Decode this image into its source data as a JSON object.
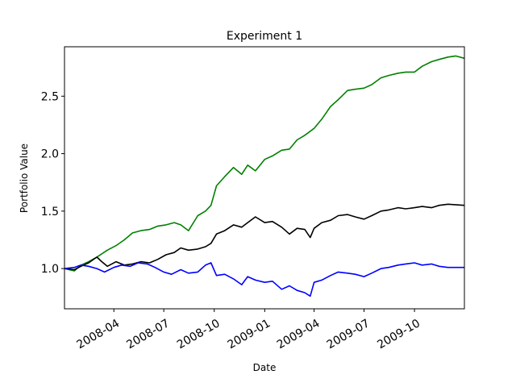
{
  "chart_data": {
    "type": "line",
    "title": "Experiment 1",
    "xlabel": "Date",
    "ylabel": "Portfolio Value",
    "x_range": [
      "2008-01-02",
      "2009-12-31"
    ],
    "ylim": [
      0.65,
      2.93
    ],
    "grid": false,
    "legend": "none",
    "x_ticks": [
      "2008-04",
      "2008-07",
      "2008-10",
      "2009-01",
      "2009-04",
      "2009-07",
      "2009-10"
    ],
    "x_tick_dates": [
      "2008-04-01",
      "2008-07-01",
      "2008-10-01",
      "2009-01-01",
      "2009-04-01",
      "2009-07-01",
      "2009-10-01"
    ],
    "y_ticks": [
      1.0,
      1.5,
      2.0,
      2.5
    ],
    "y_tick_labels": [
      "1.0",
      "1.5",
      "2.0",
      "2.5"
    ],
    "series": [
      {
        "color": "#008000",
        "points": [
          [
            "2008-01-02",
            1.0
          ],
          [
            "2008-01-20",
            0.98
          ],
          [
            "2008-02-01",
            1.03
          ],
          [
            "2008-02-15",
            1.06
          ],
          [
            "2008-03-01",
            1.1
          ],
          [
            "2008-03-20",
            1.16
          ],
          [
            "2008-04-05",
            1.2
          ],
          [
            "2008-04-20",
            1.25
          ],
          [
            "2008-05-05",
            1.31
          ],
          [
            "2008-05-20",
            1.33
          ],
          [
            "2008-06-05",
            1.34
          ],
          [
            "2008-06-20",
            1.37
          ],
          [
            "2008-07-05",
            1.38
          ],
          [
            "2008-07-20",
            1.4
          ],
          [
            "2008-08-01",
            1.38
          ],
          [
            "2008-08-15",
            1.33
          ],
          [
            "2008-09-01",
            1.46
          ],
          [
            "2008-09-15",
            1.5
          ],
          [
            "2008-09-25",
            1.55
          ],
          [
            "2008-10-05",
            1.72
          ],
          [
            "2008-10-20",
            1.8
          ],
          [
            "2008-11-05",
            1.88
          ],
          [
            "2008-11-20",
            1.82
          ],
          [
            "2008-12-01",
            1.9
          ],
          [
            "2008-12-15",
            1.85
          ],
          [
            "2009-01-01",
            1.95
          ],
          [
            "2009-01-15",
            1.98
          ],
          [
            "2009-02-01",
            2.03
          ],
          [
            "2009-02-15",
            2.04
          ],
          [
            "2009-03-01",
            2.12
          ],
          [
            "2009-03-15",
            2.16
          ],
          [
            "2009-04-01",
            2.22
          ],
          [
            "2009-04-15",
            2.3
          ],
          [
            "2009-05-01",
            2.41
          ],
          [
            "2009-05-15",
            2.47
          ],
          [
            "2009-06-01",
            2.55
          ],
          [
            "2009-06-15",
            2.56
          ],
          [
            "2009-07-01",
            2.57
          ],
          [
            "2009-07-15",
            2.6
          ],
          [
            "2009-08-01",
            2.66
          ],
          [
            "2009-08-15",
            2.68
          ],
          [
            "2009-09-01",
            2.7
          ],
          [
            "2009-09-15",
            2.71
          ],
          [
            "2009-10-01",
            2.71
          ],
          [
            "2009-10-15",
            2.76
          ],
          [
            "2009-11-01",
            2.8
          ],
          [
            "2009-11-15",
            2.82
          ],
          [
            "2009-12-01",
            2.84
          ],
          [
            "2009-12-15",
            2.85
          ],
          [
            "2009-12-31",
            2.83
          ]
        ]
      },
      {
        "color": "#000000",
        "points": [
          [
            "2008-01-02",
            1.0
          ],
          [
            "2008-01-20",
            0.99
          ],
          [
            "2008-02-01",
            1.02
          ],
          [
            "2008-02-15",
            1.05
          ],
          [
            "2008-03-01",
            1.1
          ],
          [
            "2008-03-10",
            1.06
          ],
          [
            "2008-03-20",
            1.02
          ],
          [
            "2008-04-05",
            1.06
          ],
          [
            "2008-04-20",
            1.03
          ],
          [
            "2008-05-05",
            1.04
          ],
          [
            "2008-05-20",
            1.06
          ],
          [
            "2008-06-05",
            1.05
          ],
          [
            "2008-06-20",
            1.08
          ],
          [
            "2008-07-05",
            1.12
          ],
          [
            "2008-07-20",
            1.14
          ],
          [
            "2008-08-01",
            1.18
          ],
          [
            "2008-08-15",
            1.16
          ],
          [
            "2008-09-01",
            1.17
          ],
          [
            "2008-09-15",
            1.19
          ],
          [
            "2008-09-25",
            1.22
          ],
          [
            "2008-10-05",
            1.3
          ],
          [
            "2008-10-20",
            1.33
          ],
          [
            "2008-11-05",
            1.38
          ],
          [
            "2008-11-20",
            1.36
          ],
          [
            "2008-12-01",
            1.4
          ],
          [
            "2008-12-15",
            1.45
          ],
          [
            "2009-01-01",
            1.4
          ],
          [
            "2009-01-15",
            1.41
          ],
          [
            "2009-02-01",
            1.36
          ],
          [
            "2009-02-15",
            1.3
          ],
          [
            "2009-03-01",
            1.35
          ],
          [
            "2009-03-15",
            1.34
          ],
          [
            "2009-03-25",
            1.27
          ],
          [
            "2009-04-01",
            1.35
          ],
          [
            "2009-04-15",
            1.4
          ],
          [
            "2009-05-01",
            1.42
          ],
          [
            "2009-05-15",
            1.46
          ],
          [
            "2009-06-01",
            1.47
          ],
          [
            "2009-06-15",
            1.45
          ],
          [
            "2009-07-01",
            1.43
          ],
          [
            "2009-07-15",
            1.46
          ],
          [
            "2009-08-01",
            1.5
          ],
          [
            "2009-08-15",
            1.51
          ],
          [
            "2009-09-01",
            1.53
          ],
          [
            "2009-09-15",
            1.52
          ],
          [
            "2009-10-01",
            1.53
          ],
          [
            "2009-10-15",
            1.54
          ],
          [
            "2009-11-01",
            1.53
          ],
          [
            "2009-11-15",
            1.55
          ],
          [
            "2009-12-01",
            1.56
          ],
          [
            "2009-12-31",
            1.55
          ]
        ]
      },
      {
        "color": "#0000ff",
        "points": [
          [
            "2008-01-02",
            1.0
          ],
          [
            "2008-01-20",
            1.01
          ],
          [
            "2008-02-01",
            1.03
          ],
          [
            "2008-02-15",
            1.02
          ],
          [
            "2008-03-01",
            1.0
          ],
          [
            "2008-03-15",
            0.97
          ],
          [
            "2008-04-01",
            1.01
          ],
          [
            "2008-04-15",
            1.03
          ],
          [
            "2008-05-01",
            1.02
          ],
          [
            "2008-05-15",
            1.05
          ],
          [
            "2008-06-01",
            1.04
          ],
          [
            "2008-06-15",
            1.01
          ],
          [
            "2008-07-01",
            0.97
          ],
          [
            "2008-07-15",
            0.95
          ],
          [
            "2008-08-01",
            0.99
          ],
          [
            "2008-08-15",
            0.96
          ],
          [
            "2008-09-01",
            0.97
          ],
          [
            "2008-09-15",
            1.03
          ],
          [
            "2008-09-25",
            1.05
          ],
          [
            "2008-10-05",
            0.94
          ],
          [
            "2008-10-20",
            0.95
          ],
          [
            "2008-11-05",
            0.91
          ],
          [
            "2008-11-20",
            0.86
          ],
          [
            "2008-12-01",
            0.93
          ],
          [
            "2008-12-15",
            0.9
          ],
          [
            "2009-01-01",
            0.88
          ],
          [
            "2009-01-15",
            0.89
          ],
          [
            "2009-02-01",
            0.82
          ],
          [
            "2009-02-15",
            0.85
          ],
          [
            "2009-03-01",
            0.81
          ],
          [
            "2009-03-15",
            0.79
          ],
          [
            "2009-03-25",
            0.76
          ],
          [
            "2009-04-01",
            0.88
          ],
          [
            "2009-04-15",
            0.9
          ],
          [
            "2009-05-01",
            0.94
          ],
          [
            "2009-05-15",
            0.97
          ],
          [
            "2009-06-01",
            0.96
          ],
          [
            "2009-06-15",
            0.95
          ],
          [
            "2009-07-01",
            0.93
          ],
          [
            "2009-07-15",
            0.96
          ],
          [
            "2009-08-01",
            1.0
          ],
          [
            "2009-08-15",
            1.01
          ],
          [
            "2009-09-01",
            1.03
          ],
          [
            "2009-09-15",
            1.04
          ],
          [
            "2009-10-01",
            1.05
          ],
          [
            "2009-10-15",
            1.03
          ],
          [
            "2009-11-01",
            1.04
          ],
          [
            "2009-11-15",
            1.02
          ],
          [
            "2009-12-01",
            1.01
          ],
          [
            "2009-12-31",
            1.01
          ]
        ]
      }
    ]
  }
}
